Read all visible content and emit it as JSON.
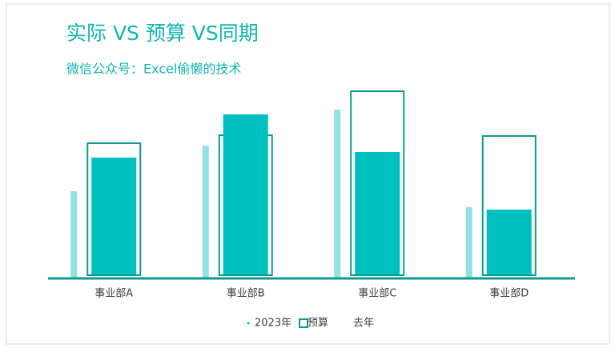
{
  "chart_data": {
    "type": "bar",
    "title": "实际 VS 预算 VS同期",
    "subtitle": "微信公众号：Excel偷懒的技术",
    "categories": [
      "事业部A",
      "事业部B",
      "事业部C",
      "事业部D"
    ],
    "series": [
      {
        "name": "2023年",
        "color": "#00bfbf",
        "values": [
          151,
          205,
          158,
          86
        ]
      },
      {
        "name": "预算",
        "color": "#0e9a94",
        "values": [
          169,
          179,
          234,
          178
        ]
      },
      {
        "name": "去年",
        "color": "#8fe3e0",
        "values": [
          109,
          166,
          211,
          89
        ]
      }
    ],
    "ylim": [
      0,
      250
    ]
  }
}
